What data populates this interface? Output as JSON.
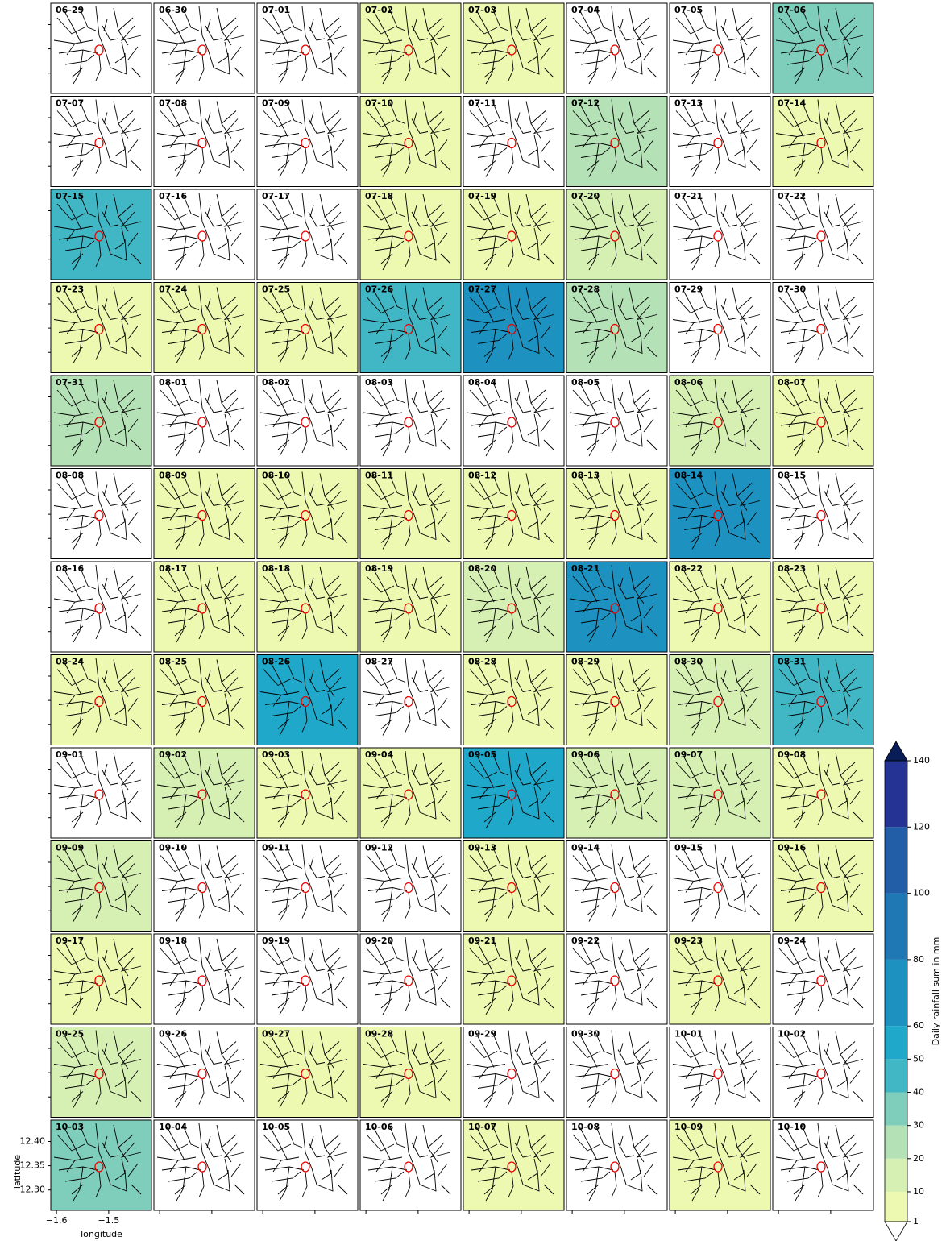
{
  "chart_data": {
    "type": "map-grid",
    "panels": [
      {
        "label": "06-29",
        "value": 0
      },
      {
        "label": "06-30",
        "value": 0
      },
      {
        "label": "07-01",
        "value": 0
      },
      {
        "label": "07-02",
        "value": 5
      },
      {
        "label": "07-03",
        "value": 5
      },
      {
        "label": "07-04",
        "value": 0
      },
      {
        "label": "07-05",
        "value": 0
      },
      {
        "label": "07-06",
        "value": 30
      },
      {
        "label": "07-07",
        "value": 0
      },
      {
        "label": "07-08",
        "value": 0
      },
      {
        "label": "07-09",
        "value": 0
      },
      {
        "label": "07-10",
        "value": 5
      },
      {
        "label": "07-11",
        "value": 0
      },
      {
        "label": "07-12",
        "value": 25
      },
      {
        "label": "07-13",
        "value": 0
      },
      {
        "label": "07-14",
        "value": 5
      },
      {
        "label": "07-15",
        "value": 45
      },
      {
        "label": "07-16",
        "value": 0
      },
      {
        "label": "07-17",
        "value": 0
      },
      {
        "label": "07-18",
        "value": 5
      },
      {
        "label": "07-19",
        "value": 8
      },
      {
        "label": "07-20",
        "value": 12
      },
      {
        "label": "07-21",
        "value": 0
      },
      {
        "label": "07-22",
        "value": 0
      },
      {
        "label": "07-23",
        "value": 3
      },
      {
        "label": "07-24",
        "value": 3
      },
      {
        "label": "07-25",
        "value": 4
      },
      {
        "label": "07-26",
        "value": 42
      },
      {
        "label": "07-27",
        "value": 60
      },
      {
        "label": "07-28",
        "value": 25
      },
      {
        "label": "07-29",
        "value": 0
      },
      {
        "label": "07-30",
        "value": 0
      },
      {
        "label": "07-31",
        "value": 25
      },
      {
        "label": "08-01",
        "value": 0
      },
      {
        "label": "08-02",
        "value": 0
      },
      {
        "label": "08-03",
        "value": 0
      },
      {
        "label": "08-04",
        "value": 0
      },
      {
        "label": "08-05",
        "value": 0
      },
      {
        "label": "08-06",
        "value": 15
      },
      {
        "label": "08-07",
        "value": 5
      },
      {
        "label": "08-08",
        "value": 0
      },
      {
        "label": "08-09",
        "value": 5
      },
      {
        "label": "08-10",
        "value": 3
      },
      {
        "label": "08-11",
        "value": 3
      },
      {
        "label": "08-12",
        "value": 3
      },
      {
        "label": "08-13",
        "value": 3
      },
      {
        "label": "08-14",
        "value": 65
      },
      {
        "label": "08-15",
        "value": 0
      },
      {
        "label": "08-16",
        "value": 0
      },
      {
        "label": "08-17",
        "value": 5
      },
      {
        "label": "08-18",
        "value": 3
      },
      {
        "label": "08-19",
        "value": 3
      },
      {
        "label": "08-20",
        "value": 12
      },
      {
        "label": "08-21",
        "value": 65
      },
      {
        "label": "08-22",
        "value": 2
      },
      {
        "label": "08-23",
        "value": 2
      },
      {
        "label": "08-24",
        "value": 5
      },
      {
        "label": "08-25",
        "value": 8
      },
      {
        "label": "08-26",
        "value": 50
      },
      {
        "label": "08-27",
        "value": 0
      },
      {
        "label": "08-28",
        "value": 8
      },
      {
        "label": "08-29",
        "value": 8
      },
      {
        "label": "08-30",
        "value": 15
      },
      {
        "label": "08-31",
        "value": 45
      },
      {
        "label": "09-01",
        "value": 0
      },
      {
        "label": "09-02",
        "value": 18
      },
      {
        "label": "09-03",
        "value": 6
      },
      {
        "label": "09-04",
        "value": 6
      },
      {
        "label": "09-05",
        "value": 55
      },
      {
        "label": "09-06",
        "value": 15
      },
      {
        "label": "09-07",
        "value": 18
      },
      {
        "label": "09-08",
        "value": 5
      },
      {
        "label": "09-09",
        "value": 15
      },
      {
        "label": "09-10",
        "value": 0
      },
      {
        "label": "09-11",
        "value": 0
      },
      {
        "label": "09-12",
        "value": 0
      },
      {
        "label": "09-13",
        "value": 2
      },
      {
        "label": "09-14",
        "value": 0
      },
      {
        "label": "09-15",
        "value": 0
      },
      {
        "label": "09-16",
        "value": 5
      },
      {
        "label": "09-17",
        "value": 5
      },
      {
        "label": "09-18",
        "value": 0
      },
      {
        "label": "09-19",
        "value": 0
      },
      {
        "label": "09-20",
        "value": 0
      },
      {
        "label": "09-21",
        "value": 5
      },
      {
        "label": "09-22",
        "value": 0
      },
      {
        "label": "09-23",
        "value": 2
      },
      {
        "label": "09-24",
        "value": 0
      },
      {
        "label": "09-25",
        "value": 15
      },
      {
        "label": "09-26",
        "value": 0
      },
      {
        "label": "09-27",
        "value": 3
      },
      {
        "label": "09-28",
        "value": 2
      },
      {
        "label": "09-29",
        "value": 0
      },
      {
        "label": "09-30",
        "value": 0
      },
      {
        "label": "10-01",
        "value": 0
      },
      {
        "label": "10-02",
        "value": 0
      },
      {
        "label": "10-03",
        "value": 30
      },
      {
        "label": "10-04",
        "value": 0
      },
      {
        "label": "10-05",
        "value": 0
      },
      {
        "label": "10-06",
        "value": 0
      },
      {
        "label": "10-07",
        "value": 4
      },
      {
        "label": "10-08",
        "value": 0
      },
      {
        "label": "10-09",
        "value": 1
      },
      {
        "label": "10-10",
        "value": 0
      }
    ],
    "xlabel": "longitude",
    "ylabel": "latitude",
    "xlim": [
      -1.611,
      -1.418
    ],
    "ylim": [
      12.258,
      12.444
    ],
    "xticks": [
      {
        "value": -1.6,
        "label": "−1.6"
      },
      {
        "value": -1.5,
        "label": "−1.5"
      }
    ],
    "yticks": [
      {
        "value": 12.3,
        "label": "12.30"
      },
      12.35,
      {
        "value": 12.4,
        "label": "12.40"
      }
    ],
    "colorbar": {
      "label": "Daily rainfall sum in mm",
      "lim": [
        1,
        140
      ],
      "ticks": [
        1,
        10,
        20,
        30,
        40,
        50,
        60,
        80,
        100,
        120,
        140
      ],
      "colors": [
        "#edf8b1",
        "#d6efb3",
        "#b5e1b6",
        "#7fcdbb",
        "#41b6c4",
        "#1fa8c9",
        "#1d91c0",
        "#1f78b4",
        "#225ea8",
        "#253494"
      ],
      "under_color": "#ffffff",
      "over_color": "#081d58"
    }
  }
}
